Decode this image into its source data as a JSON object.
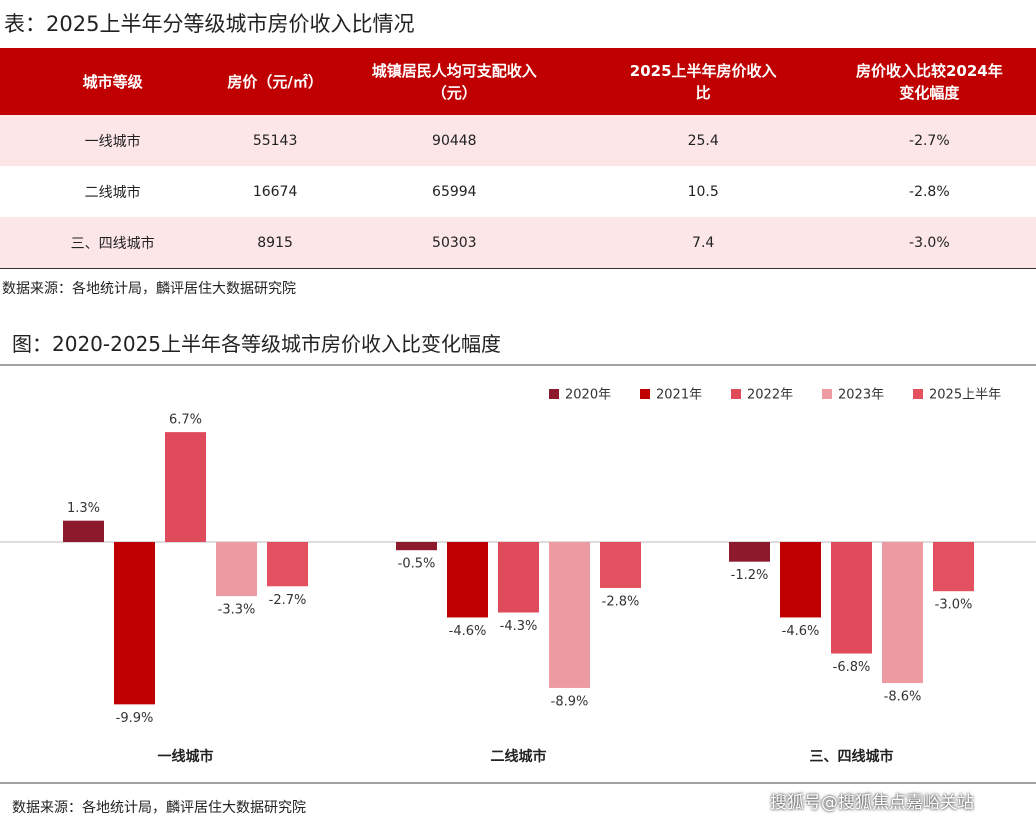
{
  "table_title": "表：2025上半年分等级城市房价收入比情况",
  "table": {
    "headers": [
      "城市等级",
      "房价（元/㎡）",
      "城镇居民人均可支配收入（元）",
      "2025上半年房价收入比",
      "房价收入比较2024年变化幅度"
    ],
    "rows": [
      [
        "一线城市",
        "55143",
        "90448",
        "25.4",
        "-2.7%"
      ],
      [
        "二线城市",
        "16674",
        "65994",
        "10.5",
        "-2.8%"
      ],
      [
        "三、四线城市",
        "8915",
        "50303",
        "7.4",
        "-3.0%"
      ]
    ]
  },
  "table_source": "数据来源：各地统计局，麟评居住大数据研究院",
  "chart_title": "图：2020-2025上半年各等级城市房价收入比变化幅度",
  "chart_data": {
    "type": "bar",
    "categories": [
      "一线城市",
      "二线城市",
      "三、四线城市"
    ],
    "series": [
      {
        "name": "2020年",
        "color": "#8c1a2c",
        "values": [
          1.3,
          -0.5,
          -1.2
        ],
        "value_labels": [
          "1.3%",
          "-0.5%",
          "-1.2%"
        ]
      },
      {
        "name": "2021年",
        "color": "#c00000",
        "values": [
          -9.9,
          -4.6,
          -4.6
        ],
        "value_labels": [
          "-9.9%",
          "-4.6%",
          "-4.6%"
        ]
      },
      {
        "name": "2022年",
        "color": "#e04b5b",
        "values": [
          6.7,
          -4.3,
          -6.8
        ],
        "value_labels": [
          "6.7%",
          "-4.3%",
          "-6.8%"
        ]
      },
      {
        "name": "2023年",
        "color": "#ee9aa3",
        "values": [
          -3.3,
          -8.9,
          -8.6
        ],
        "value_labels": [
          "-3.3%",
          "-8.9%",
          "-8.6%"
        ]
      },
      {
        "name": "2025上半年",
        "color": "#e3505f",
        "values": [
          -2.7,
          -2.8,
          -3.0
        ],
        "value_labels": [
          "-2.7%",
          "-2.8%",
          "-3.0%"
        ]
      }
    ]
  },
  "chart_source": "数据来源：各地统计局，麟评居住大数据研究院",
  "watermark": "搜狐号@搜狐焦点嘉峪关站"
}
